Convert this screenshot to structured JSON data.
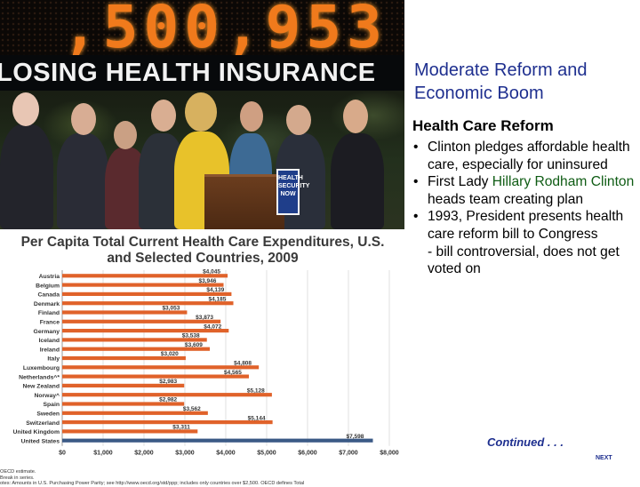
{
  "photo": {
    "counter": ",500,953",
    "banner": "LOSING HEALTH INSURANCE",
    "podium_sign": [
      "HEALTH",
      "SECURITY",
      "NOW"
    ]
  },
  "slide": {
    "title": "Moderate Reform and Economic Boom",
    "section_heading": "Health Care Reform",
    "bullets": [
      {
        "text": "Clinton pledges affordable health care, especially for uninsured"
      },
      {
        "pre": "First Lady ",
        "highlight": "Hillary Rodham Clinton",
        "post": " heads team creating plan"
      },
      {
        "text": "1993, President presents health care reform bill to Congress"
      }
    ],
    "subnote": "- bill controversial, does not get voted on",
    "continued": "Continued . . .",
    "next": "NEXT"
  },
  "colors": {
    "title_blue": "#1e2f8f",
    "highlight_green": "#0f5c14",
    "bar_orange": "#e0622a",
    "bar_us": "#3b5a86"
  },
  "chart_data": {
    "type": "bar",
    "orientation": "horizontal",
    "title": "Per Capita Total Current Health Care Expenditures, U.S. and Selected Countries, 2009",
    "categories": [
      "Austria",
      "Belgium",
      "Canada",
      "Denmark",
      "Finland",
      "France",
      "Germany",
      "Iceland",
      "Ireland",
      "Italy",
      "Luxembourg",
      "Netherlands^*",
      "New Zealand",
      "Norway^",
      "Spain",
      "Sweden",
      "Switzerland",
      "United Kingdom",
      "United States"
    ],
    "values": [
      4045,
      3946,
      4139,
      4185,
      3053,
      3873,
      4072,
      3538,
      3609,
      3020,
      4808,
      4565,
      2983,
      5128,
      2982,
      3562,
      5144,
      3311,
      7598
    ],
    "data_labels": [
      "$4,045",
      "$3,946",
      "$4,139",
      "$4,185",
      "$3,053",
      "$3,873",
      "$4,072",
      "$3,538",
      "$3,609",
      "$3,020",
      "$4,808",
      "$4,565",
      "$2,983",
      "$5,128",
      "$2,982",
      "$3,562",
      "$5,144",
      "$3,311",
      "$7,598"
    ],
    "xticks": [
      "$0",
      "$1,000",
      "$2,000",
      "$3,000",
      "$4,000",
      "$5,000",
      "$6,000",
      "$7,000",
      "$8,000"
    ],
    "xlim": [
      0,
      8000
    ],
    "grid": true,
    "footnotes": [
      "OECD estimate.",
      "Break in series.",
      "otes: Amounts in U.S. Purchasing Power Parity; see http://www.oecd.org/std/ppp; includes only countries over $2,500. OECD defines Total"
    ]
  }
}
